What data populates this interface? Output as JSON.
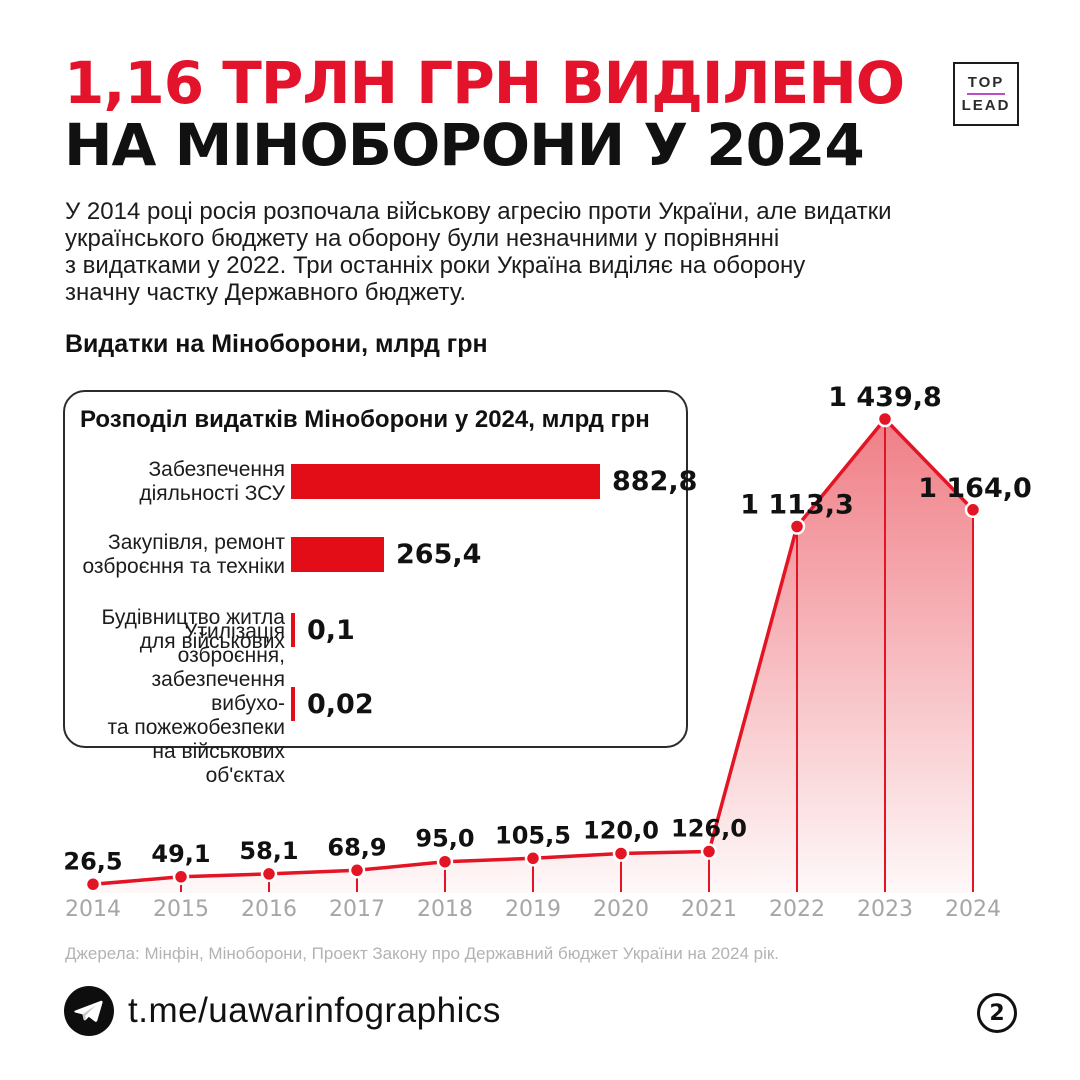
{
  "header": {
    "title_line1": "1,16 ТРЛН ГРН ВИДІЛЕНО",
    "title_line2": "НА МІНОБОРОНИ У 2024",
    "logo": {
      "top": "TOP",
      "lead": "LEAD"
    }
  },
  "intro": {
    "lines": [
      "У 2014 році росія розпочала військову агресію проти України, але видатки",
      "українського бюджету на оборону були незначними у порівнянні",
      "з видатками у 2022. Три останніх роки Україна виділяє на оборону",
      "значну частку Державного бюджету."
    ]
  },
  "chart_heading": "Видатки на Міноборони, млрд грн",
  "inset": {
    "title": "Розподіл видатків Міноборони у 2024, млрд грн",
    "unit": "млрд грн",
    "bars": [
      {
        "label_lines": [
          "Забезпечення",
          "діяльності ЗСУ"
        ],
        "value": 882.8,
        "value_label": "882,8"
      },
      {
        "label_lines": [
          "Закупівля, ремонт",
          "озброєння та техніки"
        ],
        "value": 265.4,
        "value_label": "265,4"
      },
      {
        "label_lines": [
          "Будівництво житла",
          "для військових"
        ],
        "value": 0.1,
        "value_label": "0,1"
      },
      {
        "label_lines": [
          "Утилізація озброєння,",
          "забезпечення вибухо-",
          "та пожежобезпеки",
          "на військових об'єктах"
        ],
        "value": 0.02,
        "value_label": "0,02"
      }
    ]
  },
  "chart_data": {
    "type": "area",
    "title": "Видатки на Міноборони, млрд грн",
    "xlabel": "",
    "ylabel": "млрд грн",
    "categories": [
      "2014",
      "2015",
      "2016",
      "2017",
      "2018",
      "2019",
      "2020",
      "2021",
      "2022",
      "2023",
      "2024"
    ],
    "values": [
      26.5,
      49.1,
      58.1,
      68.9,
      95.0,
      105.5,
      120.0,
      126.0,
      1113.3,
      1439.8,
      1164.0
    ],
    "point_labels": [
      "26,5",
      "49,1",
      "58,1",
      "68,9",
      "95,0",
      "105,5",
      "120,0",
      "126,0",
      "1 113,3",
      "1 439,8",
      "1 164,0"
    ],
    "ylim": [
      0,
      1439.8
    ],
    "grid": false,
    "legend": "none"
  },
  "source": "Джерела: Мінфін, Міноборони, Проект Закону про Державний бюджет України на 2024 рік.",
  "footer": {
    "channel": "t.me/uawarinfographics",
    "page": "2"
  },
  "colors": {
    "title_red": "#e3132b",
    "chart_red": "#e30d18",
    "fill_red": "#e31423",
    "black": "#111111",
    "gray_year": "#a6a6a6",
    "gray_source": "#b3b3b3",
    "logo_purple": "#bb4fc8"
  }
}
